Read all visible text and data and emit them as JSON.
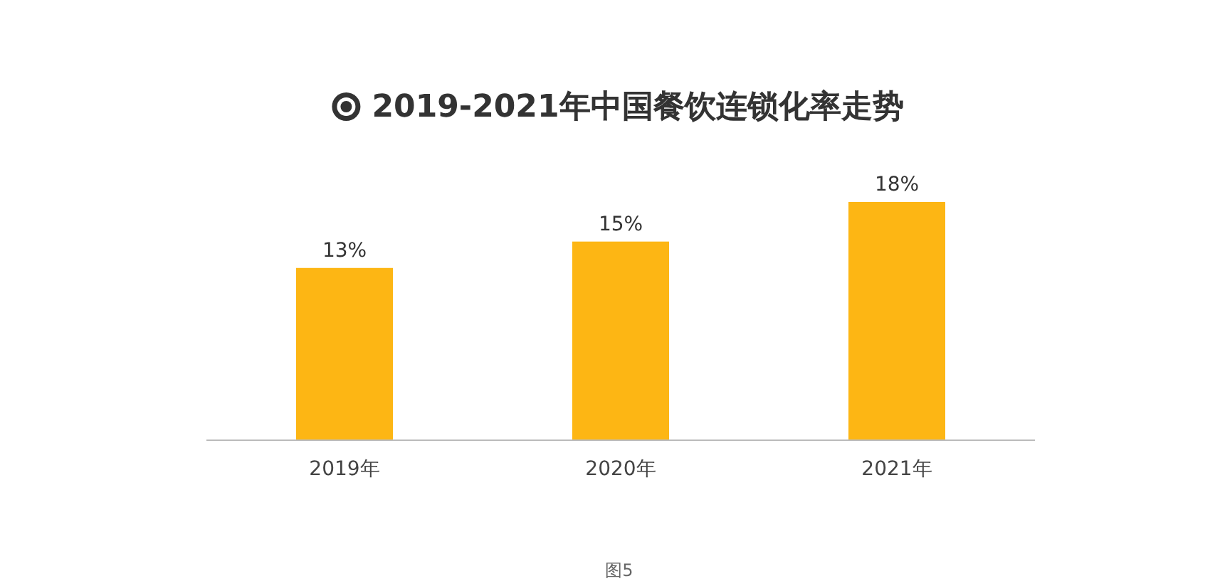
{
  "chart_data": {
    "type": "bar",
    "title": "2019-2021年中国餐饮连锁化率走势",
    "categories": [
      "2019年",
      "2020年",
      "2021年"
    ],
    "values": [
      13,
      15,
      18
    ],
    "color": "#fdb614",
    "value_labels": [
      "13%",
      "15%",
      "18%"
    ],
    "annotations": [
      "图5"
    ]
  }
}
